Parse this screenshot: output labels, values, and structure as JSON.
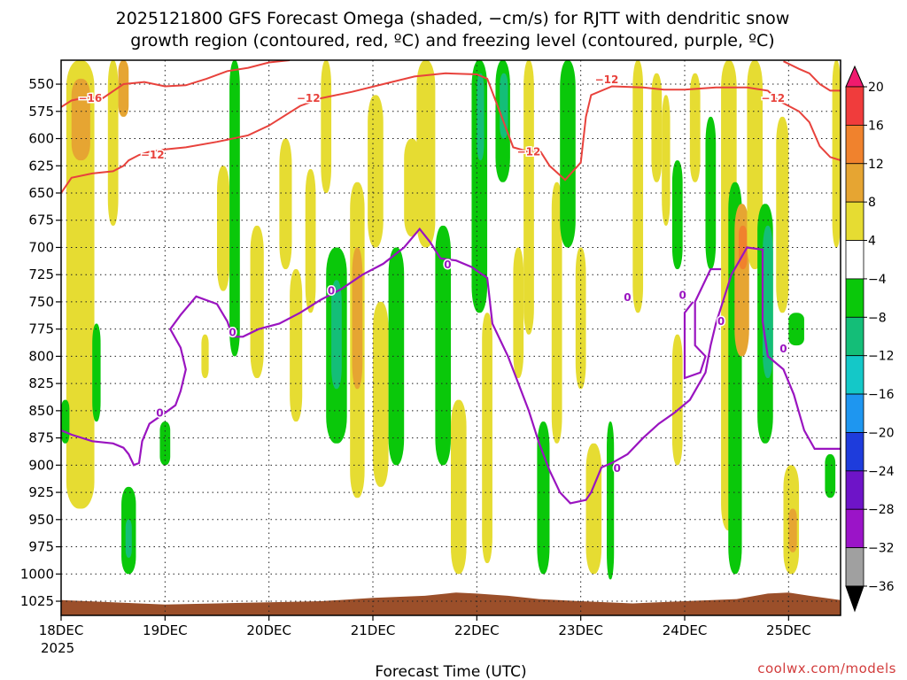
{
  "chart_data": {
    "type": "heatmap",
    "title_line1": "2025121800 GFS Forecast Omega (shaded, −cm/s) for RJTT with dendritic snow",
    "title_line2": "growth region (contoured, red, ºC) and freezing level (contoured, purple, ºC)",
    "xlabel": "Forecast Time (UTC)",
    "ylabel": "",
    "credit": "coolwx.com/models",
    "x_ticks": [
      "18DEC",
      "19DEC",
      "20DEC",
      "21DEC",
      "22DEC",
      "23DEC",
      "24DEC",
      "25DEC"
    ],
    "x_year": "2025",
    "x_range_days": [
      0,
      7.5
    ],
    "y_ticks": [
      550,
      575,
      600,
      625,
      650,
      675,
      700,
      725,
      750,
      775,
      800,
      825,
      850,
      875,
      900,
      925,
      950,
      975,
      1000,
      1025
    ],
    "y_range_hpa": [
      528,
      1038
    ],
    "y_reversed": true,
    "grid": true,
    "colorbar": {
      "labels": [
        "20",
        "16",
        "12",
        "8",
        "4",
        "−4",
        "−8",
        "−12",
        "−16",
        "−20",
        "−24",
        "−28",
        "−32",
        "−36"
      ],
      "colors": [
        "#f01a6e",
        "#f03c3c",
        "#f0822d",
        "#e6a532",
        "#e6dc32",
        "#ffffff",
        "#0ac80a",
        "#14be78",
        "#14c8c8",
        "#1e96f0",
        "#1e3cdc",
        "#6e14c8",
        "#9b14c8",
        "#a0a0a0",
        "#000000"
      ],
      "placement": "right"
    },
    "contour_colors": {
      "dgz": "#e8423c",
      "freezing": "#9a14c0",
      "terrain": "#9b4f2a"
    },
    "contour_labels": [
      {
        "text": "−16",
        "x": 0.28,
        "p": 563
      },
      {
        "text": "−12",
        "x": 2.38,
        "p": 563
      },
      {
        "text": "−12",
        "x": 0.88,
        "p": 615
      },
      {
        "text": "−12",
        "x": 4.5,
        "p": 612
      },
      {
        "text": "−12",
        "x": 5.25,
        "p": 546
      },
      {
        "text": "−12",
        "x": 6.85,
        "p": 563
      },
      {
        "text": "0",
        "x": 0.95,
        "p": 852
      },
      {
        "text": "0",
        "x": 1.65,
        "p": 778
      },
      {
        "text": "0",
        "x": 2.6,
        "p": 740
      },
      {
        "text": "0",
        "x": 3.72,
        "p": 716
      },
      {
        "text": "0",
        "x": 5.35,
        "p": 903
      },
      {
        "text": "0",
        "x": 5.45,
        "p": 746
      },
      {
        "text": "0",
        "x": 5.98,
        "p": 744
      },
      {
        "text": "0",
        "x": 6.35,
        "p": 768
      },
      {
        "text": "0",
        "x": 6.95,
        "p": 793
      }
    ],
    "dgz_contours": [
      [
        [
          0,
          571
        ],
        [
          0.1,
          565
        ],
        [
          0.25,
          562
        ],
        [
          0.4,
          563
        ],
        [
          0.6,
          550
        ],
        [
          0.8,
          548
        ],
        [
          1.0,
          552
        ],
        [
          1.2,
          551
        ],
        [
          1.4,
          545
        ],
        [
          1.6,
          538
        ],
        [
          1.8,
          535
        ],
        [
          2.0,
          530
        ],
        [
          2.2,
          528
        ]
      ],
      [
        [
          0,
          650
        ],
        [
          0.1,
          636
        ],
        [
          0.3,
          632
        ],
        [
          0.5,
          630
        ],
        [
          0.6,
          625
        ],
        [
          0.65,
          620
        ],
        [
          0.75,
          615
        ],
        [
          0.85,
          612
        ],
        [
          1.0,
          610
        ],
        [
          1.2,
          608
        ],
        [
          1.5,
          603
        ],
        [
          1.8,
          597
        ],
        [
          2.0,
          588
        ],
        [
          2.3,
          570
        ],
        [
          2.5,
          563
        ],
        [
          2.8,
          557
        ],
        [
          3.1,
          550
        ],
        [
          3.4,
          543
        ],
        [
          3.7,
          540
        ],
        [
          4.0,
          541
        ],
        [
          4.1,
          545
        ],
        [
          4.2,
          570
        ],
        [
          4.35,
          608
        ],
        [
          4.5,
          612
        ],
        [
          4.6,
          610
        ],
        [
          4.7,
          625
        ],
        [
          4.85,
          638
        ],
        [
          5.0,
          622
        ],
        [
          5.05,
          580
        ],
        [
          5.1,
          560
        ],
        [
          5.3,
          552
        ],
        [
          5.6,
          553
        ],
        [
          5.8,
          555
        ],
        [
          6.0,
          555
        ],
        [
          6.3,
          553
        ],
        [
          6.6,
          553
        ],
        [
          6.8,
          556
        ],
        [
          6.9,
          565
        ],
        [
          7.0,
          570
        ],
        [
          7.1,
          575
        ],
        [
          7.2,
          585
        ],
        [
          7.3,
          607
        ],
        [
          7.4,
          617
        ],
        [
          7.5,
          620
        ]
      ],
      [
        [
          6.95,
          529
        ],
        [
          7.1,
          536
        ],
        [
          7.2,
          540
        ],
        [
          7.3,
          550
        ],
        [
          7.4,
          556
        ],
        [
          7.5,
          556
        ]
      ]
    ],
    "freezing_contours": [
      [
        [
          0,
          868
        ],
        [
          0.1,
          872
        ],
        [
          0.3,
          878
        ],
        [
          0.5,
          880
        ],
        [
          0.6,
          884
        ],
        [
          0.65,
          890
        ],
        [
          0.7,
          900
        ],
        [
          0.75,
          898
        ],
        [
          0.78,
          878
        ],
        [
          0.85,
          862
        ],
        [
          1.0,
          852
        ],
        [
          1.1,
          845
        ],
        [
          1.15,
          832
        ],
        [
          1.2,
          812
        ],
        [
          1.15,
          792
        ],
        [
          1.05,
          775
        ],
        [
          1.15,
          762
        ],
        [
          1.3,
          745
        ],
        [
          1.5,
          752
        ],
        [
          1.6,
          768
        ],
        [
          1.65,
          782
        ],
        [
          1.75,
          782
        ],
        [
          1.9,
          775
        ],
        [
          2.1,
          770
        ],
        [
          2.3,
          760
        ],
        [
          2.5,
          748
        ],
        [
          2.7,
          738
        ],
        [
          2.9,
          725
        ],
        [
          3.1,
          715
        ],
        [
          3.3,
          700
        ],
        [
          3.45,
          683
        ],
        [
          3.55,
          695
        ],
        [
          3.65,
          710
        ],
        [
          3.8,
          712
        ],
        [
          3.95,
          718
        ],
        [
          4.1,
          728
        ],
        [
          4.15,
          770
        ],
        [
          4.3,
          800
        ],
        [
          4.5,
          850
        ],
        [
          4.6,
          880
        ],
        [
          4.7,
          905
        ],
        [
          4.8,
          925
        ],
        [
          4.9,
          935
        ],
        [
          5.05,
          932
        ],
        [
          5.1,
          925
        ],
        [
          5.2,
          902
        ],
        [
          5.3,
          898
        ],
        [
          5.45,
          890
        ],
        [
          5.6,
          875
        ],
        [
          5.75,
          862
        ],
        [
          5.9,
          852
        ],
        [
          6.05,
          840
        ],
        [
          6.2,
          815
        ],
        [
          6.25,
          790
        ],
        [
          6.3,
          770
        ],
        [
          6.35,
          755
        ],
        [
          6.45,
          725
        ],
        [
          6.6,
          700
        ],
        [
          6.75,
          702
        ],
        [
          6.75,
          768
        ],
        [
          6.8,
          800
        ],
        [
          6.95,
          812
        ],
        [
          7.05,
          835
        ],
        [
          7.15,
          868
        ],
        [
          7.25,
          885
        ],
        [
          7.5,
          885
        ]
      ],
      [
        [
          6.08,
          750
        ],
        [
          6.0,
          760
        ],
        [
          6.0,
          820
        ],
        [
          6.15,
          815
        ],
        [
          6.2,
          800
        ],
        [
          6.1,
          790
        ],
        [
          6.1,
          750
        ],
        [
          6.25,
          720
        ],
        [
          6.35,
          720
        ]
      ]
    ],
    "terrain_surface_hpa": [
      [
        0,
        1024
      ],
      [
        0.5,
        1026
      ],
      [
        1,
        1028
      ],
      [
        1.5,
        1027
      ],
      [
        2,
        1026
      ],
      [
        2.5,
        1025
      ],
      [
        3,
        1022
      ],
      [
        3.5,
        1020
      ],
      [
        3.8,
        1017
      ],
      [
        4,
        1018
      ],
      [
        4.3,
        1020
      ],
      [
        4.6,
        1023
      ],
      [
        5,
        1025
      ],
      [
        5.5,
        1027
      ],
      [
        6,
        1025
      ],
      [
        6.5,
        1023
      ],
      [
        6.8,
        1018
      ],
      [
        7.0,
        1017
      ],
      [
        7.2,
        1020
      ],
      [
        7.5,
        1024
      ]
    ],
    "omega_cells": [
      {
        "x": [
          0.05,
          0.32
        ],
        "p": [
          528,
          940
        ],
        "level": 4
      },
      {
        "x": [
          0.1,
          0.28
        ],
        "p": [
          545,
          620
        ],
        "level": 8
      },
      {
        "x": [
          0.45,
          0.55
        ],
        "p": [
          528,
          680
        ],
        "level": 4
      },
      {
        "x": [
          0.55,
          0.65
        ],
        "p": [
          528,
          580
        ],
        "level": 8
      },
      {
        "x": [
          0.0,
          0.08
        ],
        "p": [
          840,
          880
        ],
        "level": -8
      },
      {
        "x": [
          0.3,
          0.38
        ],
        "p": [
          770,
          860
        ],
        "level": -8
      },
      {
        "x": [
          0.58,
          0.72
        ],
        "p": [
          920,
          1000
        ],
        "level": -8
      },
      {
        "x": [
          0.62,
          0.68
        ],
        "p": [
          950,
          985
        ],
        "level": -12
      },
      {
        "x": [
          0.95,
          1.05
        ],
        "p": [
          860,
          900
        ],
        "level": -8
      },
      {
        "x": [
          1.35,
          1.42
        ],
        "p": [
          780,
          820
        ],
        "level": 4
      },
      {
        "x": [
          1.5,
          1.62
        ],
        "p": [
          625,
          740
        ],
        "level": 4
      },
      {
        "x": [
          1.62,
          1.72
        ],
        "p": [
          528,
          800
        ],
        "level": -8
      },
      {
        "x": [
          1.82,
          1.95
        ],
        "p": [
          680,
          820
        ],
        "level": 4
      },
      {
        "x": [
          2.1,
          2.22
        ],
        "p": [
          600,
          720
        ],
        "level": 4
      },
      {
        "x": [
          2.2,
          2.32
        ],
        "p": [
          720,
          860
        ],
        "level": 4
      },
      {
        "x": [
          2.35,
          2.45
        ],
        "p": [
          628,
          760
        ],
        "level": 4
      },
      {
        "x": [
          2.5,
          2.6
        ],
        "p": [
          528,
          650
        ],
        "level": 4
      },
      {
        "x": [
          2.55,
          2.75
        ],
        "p": [
          700,
          880
        ],
        "level": -8
      },
      {
        "x": [
          2.6,
          2.7
        ],
        "p": [
          730,
          830
        ],
        "level": -12
      },
      {
        "x": [
          2.78,
          2.92
        ],
        "p": [
          640,
          930
        ],
        "level": 4
      },
      {
        "x": [
          2.8,
          2.9
        ],
        "p": [
          700,
          830
        ],
        "level": 8
      },
      {
        "x": [
          2.95,
          3.1
        ],
        "p": [
          560,
          700
        ],
        "level": 4
      },
      {
        "x": [
          3.0,
          3.15
        ],
        "p": [
          750,
          920
        ],
        "level": 4
      },
      {
        "x": [
          3.15,
          3.3
        ],
        "p": [
          700,
          900
        ],
        "level": -8
      },
      {
        "x": [
          3.3,
          3.45
        ],
        "p": [
          600,
          690
        ],
        "level": 4
      },
      {
        "x": [
          3.42,
          3.6
        ],
        "p": [
          528,
          700
        ],
        "level": 4
      },
      {
        "x": [
          3.6,
          3.75
        ],
        "p": [
          680,
          900
        ],
        "level": -8
      },
      {
        "x": [
          3.75,
          3.9
        ],
        "p": [
          840,
          1000
        ],
        "level": 4
      },
      {
        "x": [
          3.95,
          4.1
        ],
        "p": [
          528,
          760
        ],
        "level": -8
      },
      {
        "x": [
          4.0,
          4.07
        ],
        "p": [
          540,
          620
        ],
        "level": -12
      },
      {
        "x": [
          4.05,
          4.15
        ],
        "p": [
          760,
          990
        ],
        "level": 4
      },
      {
        "x": [
          4.18,
          4.32
        ],
        "p": [
          528,
          640
        ],
        "level": -8
      },
      {
        "x": [
          4.22,
          4.3
        ],
        "p": [
          540,
          600
        ],
        "level": -12
      },
      {
        "x": [
          4.35,
          4.45
        ],
        "p": [
          700,
          820
        ],
        "level": 4
      },
      {
        "x": [
          4.45,
          4.55
        ],
        "p": [
          528,
          780
        ],
        "level": 4
      },
      {
        "x": [
          4.58,
          4.7
        ],
        "p": [
          860,
          1000
        ],
        "level": -8
      },
      {
        "x": [
          4.72,
          4.82
        ],
        "p": [
          640,
          880
        ],
        "level": 4
      },
      {
        "x": [
          4.8,
          4.95
        ],
        "p": [
          528,
          700
        ],
        "level": -8
      },
      {
        "x": [
          4.95,
          5.05
        ],
        "p": [
          700,
          830
        ],
        "level": 4
      },
      {
        "x": [
          5.05,
          5.2
        ],
        "p": [
          880,
          1000
        ],
        "level": 4
      },
      {
        "x": [
          5.25,
          5.32
        ],
        "p": [
          860,
          1005
        ],
        "level": -8
      },
      {
        "x": [
          5.5,
          5.6
        ],
        "p": [
          528,
          760
        ],
        "level": 4
      },
      {
        "x": [
          5.68,
          5.78
        ],
        "p": [
          540,
          640
        ],
        "level": 4
      },
      {
        "x": [
          5.78,
          5.86
        ],
        "p": [
          560,
          680
        ],
        "level": 4
      },
      {
        "x": [
          5.88,
          5.98
        ],
        "p": [
          620,
          720
        ],
        "level": -8
      },
      {
        "x": [
          5.88,
          5.98
        ],
        "p": [
          780,
          900
        ],
        "level": 4
      },
      {
        "x": [
          6.05,
          6.15
        ],
        "p": [
          540,
          640
        ],
        "level": 4
      },
      {
        "x": [
          6.2,
          6.3
        ],
        "p": [
          580,
          720
        ],
        "level": -8
      },
      {
        "x": [
          6.35,
          6.5
        ],
        "p": [
          528,
          960
        ],
        "level": 4
      },
      {
        "x": [
          6.42,
          6.55
        ],
        "p": [
          640,
          1000
        ],
        "level": -8
      },
      {
        "x": [
          6.48,
          6.62
        ],
        "p": [
          660,
          800
        ],
        "level": 8
      },
      {
        "x": [
          6.52,
          6.6
        ],
        "p": [
          680,
          720
        ],
        "level": 12
      },
      {
        "x": [
          6.6,
          6.75
        ],
        "p": [
          528,
          720
        ],
        "level": 4
      },
      {
        "x": [
          6.7,
          6.85
        ],
        "p": [
          660,
          880
        ],
        "level": -8
      },
      {
        "x": [
          6.75,
          6.85
        ],
        "p": [
          680,
          820
        ],
        "level": -12
      },
      {
        "x": [
          6.88,
          7.0
        ],
        "p": [
          580,
          760
        ],
        "level": 4
      },
      {
        "x": [
          7.0,
          7.15
        ],
        "p": [
          760,
          790
        ],
        "level": -8
      },
      {
        "x": [
          6.95,
          7.1
        ],
        "p": [
          900,
          1000
        ],
        "level": 4
      },
      {
        "x": [
          7.0,
          7.08
        ],
        "p": [
          940,
          980
        ],
        "level": 8
      },
      {
        "x": [
          7.35,
          7.45
        ],
        "p": [
          890,
          930
        ],
        "level": -8
      },
      {
        "x": [
          7.42,
          7.5
        ],
        "p": [
          528,
          700
        ],
        "level": 4
      }
    ]
  }
}
